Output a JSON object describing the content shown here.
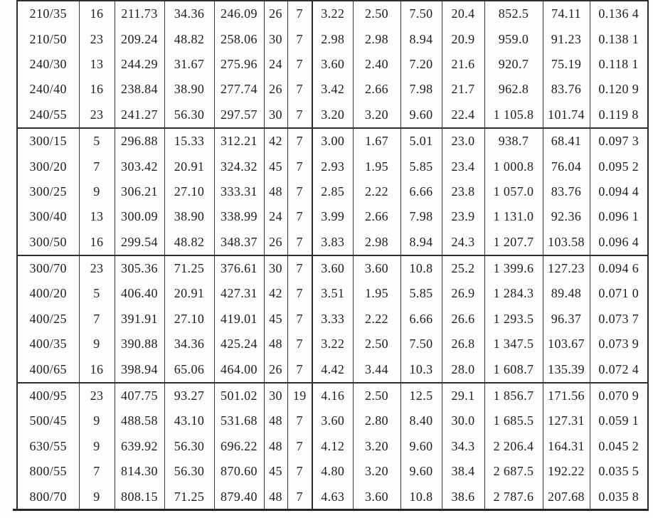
{
  "colors": {
    "ink": "#1d1d1d",
    "grid_line": "#3a3a3a",
    "heavy_line": "#262626",
    "paper": "#fdfdfc"
  },
  "table": {
    "columns_count": 14,
    "groups": [
      {
        "rows": [
          [
            "210/35",
            "16",
            "211.73",
            "34.36",
            "246.09",
            "26",
            "7",
            "3.22",
            "2.50",
            "7.50",
            "20.4",
            "852.5",
            "74.11",
            "0.136 4"
          ],
          [
            "210/50",
            "23",
            "209.24",
            "48.82",
            "258.06",
            "30",
            "7",
            "2.98",
            "2.98",
            "8.94",
            "20.9",
            "959.0",
            "91.23",
            "0.138 1"
          ],
          [
            "240/30",
            "13",
            "244.29",
            "31.67",
            "275.96",
            "24",
            "7",
            "3.60",
            "2.40",
            "7.20",
            "21.6",
            "920.7",
            "75.19",
            "0.118 1"
          ],
          [
            "240/40",
            "16",
            "238.84",
            "38.90",
            "277.74",
            "26",
            "7",
            "3.42",
            "2.66",
            "7.98",
            "21.7",
            "962.8",
            "83.76",
            "0.120 9"
          ],
          [
            "240/55",
            "23",
            "241.27",
            "56.30",
            "297.57",
            "30",
            "7",
            "3.20",
            "3.20",
            "9.60",
            "22.4",
            "1 105.8",
            "101.74",
            "0.119 8"
          ]
        ]
      },
      {
        "rows": [
          [
            "300/15",
            "5",
            "296.88",
            "15.33",
            "312.21",
            "42",
            "7",
            "3.00",
            "1.67",
            "5.01",
            "23.0",
            "938.7",
            "68.41",
            "0.097 3"
          ],
          [
            "300/20",
            "7",
            "303.42",
            "20.91",
            "324.32",
            "45",
            "7",
            "2.93",
            "1.95",
            "5.85",
            "23.4",
            "1 000.8",
            "76.04",
            "0.095 2"
          ],
          [
            "300/25",
            "9",
            "306.21",
            "27.10",
            "333.31",
            "48",
            "7",
            "2.85",
            "2.22",
            "6.66",
            "23.8",
            "1 057.0",
            "83.76",
            "0.094 4"
          ],
          [
            "300/40",
            "13",
            "300.09",
            "38.90",
            "338.99",
            "24",
            "7",
            "3.99",
            "2.66",
            "7.98",
            "23.9",
            "1 131.0",
            "92.36",
            "0.096 1"
          ],
          [
            "300/50",
            "16",
            "299.54",
            "48.82",
            "348.37",
            "26",
            "7",
            "3.83",
            "2.98",
            "8.94",
            "24.3",
            "1 207.7",
            "103.58",
            "0.096 4"
          ]
        ]
      },
      {
        "rows": [
          [
            "300/70",
            "23",
            "305.36",
            "71.25",
            "376.61",
            "30",
            "7",
            "3.60",
            "3.60",
            "10.8",
            "25.2",
            "1 399.6",
            "127.23",
            "0.094 6"
          ],
          [
            "400/20",
            "5",
            "406.40",
            "20.91",
            "427.31",
            "42",
            "7",
            "3.51",
            "1.95",
            "5.85",
            "26.9",
            "1 284.3",
            "89.48",
            "0.071 0"
          ],
          [
            "400/25",
            "7",
            "391.91",
            "27.10",
            "419.01",
            "45",
            "7",
            "3.33",
            "2.22",
            "6.66",
            "26.6",
            "1 293.5",
            "96.37",
            "0.073 7"
          ],
          [
            "400/35",
            "9",
            "390.88",
            "34.36",
            "425.24",
            "48",
            "7",
            "3.22",
            "2.50",
            "7.50",
            "26.8",
            "1 347.5",
            "103.67",
            "0.073 9"
          ],
          [
            "400/65",
            "16",
            "398.94",
            "65.06",
            "464.00",
            "26",
            "7",
            "4.42",
            "3.44",
            "10.3",
            "28.0",
            "1 608.7",
            "135.39",
            "0.072 4"
          ]
        ]
      },
      {
        "rows": [
          [
            "400/95",
            "23",
            "407.75",
            "93.27",
            "501.02",
            "30",
            "19",
            "4.16",
            "2.50",
            "12.5",
            "29.1",
            "1 856.7",
            "171.56",
            "0.070 9"
          ],
          [
            "500/45",
            "9",
            "488.58",
            "43.10",
            "531.68",
            "48",
            "7",
            "3.60",
            "2.80",
            "8.40",
            "30.0",
            "1 685.5",
            "127.31",
            "0.059 1"
          ],
          [
            "630/55",
            "9",
            "639.92",
            "56.30",
            "696.22",
            "48",
            "7",
            "4.12",
            "3.20",
            "9.60",
            "34.3",
            "2 206.4",
            "164.31",
            "0.045 2"
          ],
          [
            "800/55",
            "7",
            "814.30",
            "56.30",
            "870.60",
            "45",
            "7",
            "4.80",
            "3.20",
            "9.60",
            "38.4",
            "2 687.5",
            "192.22",
            "0.035 5"
          ],
          [
            "800/70",
            "9",
            "808.15",
            "71.25",
            "879.40",
            "48",
            "7",
            "4.63",
            "3.60",
            "10.8",
            "38.6",
            "2 787.6",
            "207.68",
            "0.035 8"
          ]
        ]
      }
    ]
  }
}
